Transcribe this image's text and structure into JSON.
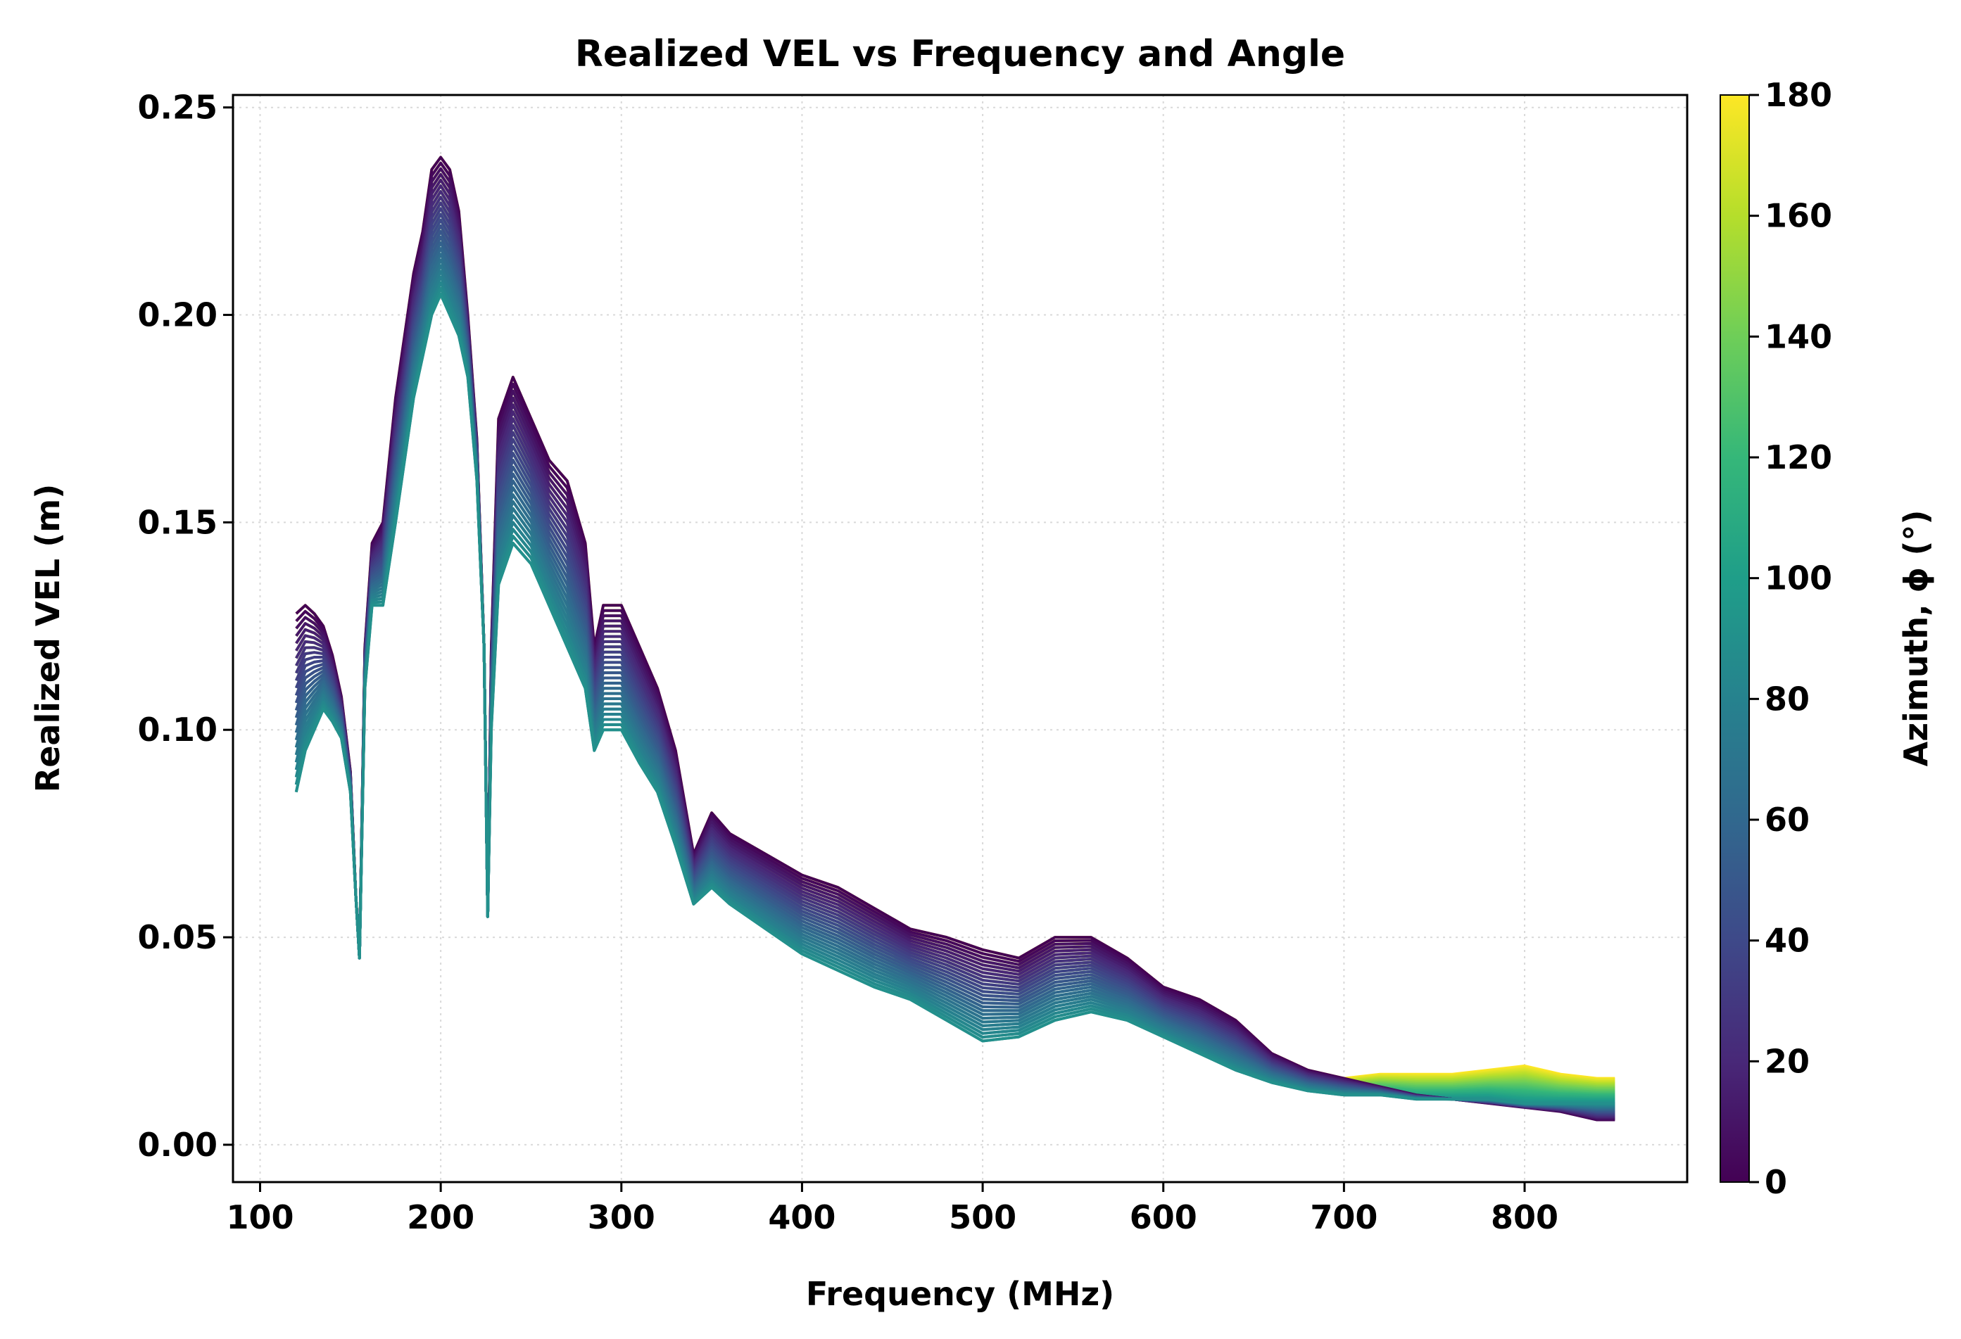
{
  "chart_data": {
    "type": "line",
    "title": "Realized VEL vs Frequency and Angle",
    "xlabel": "Frequency (MHz)",
    "ylabel": "Realized VEL (m)",
    "xlim": [
      85,
      890
    ],
    "ylim": [
      -0.009,
      0.253
    ],
    "xticks": [
      100,
      200,
      300,
      400,
      500,
      600,
      700,
      800
    ],
    "xtick_labels": [
      "100",
      "200",
      "300",
      "400",
      "500",
      "600",
      "700",
      "800"
    ],
    "yticks": [
      0.0,
      0.05,
      0.1,
      0.15,
      0.2,
      0.25
    ],
    "ytick_labels": [
      "0.00",
      "0.05",
      "0.10",
      "0.15",
      "0.20",
      "0.25"
    ],
    "grid": true,
    "colorbar": {
      "label": "Azimuth, ϕ (°)",
      "range": [
        0,
        180
      ],
      "ticks": [
        0,
        20,
        40,
        60,
        80,
        100,
        120,
        140,
        160,
        180
      ],
      "tick_labels": [
        "0",
        "20",
        "40",
        "60",
        "80",
        "100",
        "120",
        "140",
        "160",
        "180"
      ],
      "colormap_stops": [
        "#440154",
        "#482878",
        "#3e4989",
        "#31688e",
        "#26828e",
        "#1f9e89",
        "#35b779",
        "#6ece58",
        "#b5de2b",
        "#fde725"
      ]
    },
    "series": [
      {
        "name": "Azimuth 0°",
        "azimuth": 0,
        "x": [
          120,
          125,
          130,
          135,
          140,
          145,
          150,
          153,
          155,
          158,
          162,
          168,
          175,
          180,
          185,
          190,
          195,
          200,
          205,
          210,
          215,
          220,
          224,
          226,
          228,
          232,
          240,
          250,
          260,
          270,
          280,
          285,
          290,
          300,
          310,
          320,
          330,
          340,
          350,
          360,
          380,
          400,
          420,
          440,
          460,
          480,
          500,
          520,
          540,
          560,
          580,
          600,
          620,
          640,
          660,
          680,
          700,
          720,
          740,
          760,
          780,
          800,
          820,
          840,
          850
        ],
        "y": [
          0.128,
          0.13,
          0.128,
          0.125,
          0.118,
          0.108,
          0.09,
          0.06,
          0.045,
          0.12,
          0.145,
          0.15,
          0.18,
          0.195,
          0.21,
          0.22,
          0.235,
          0.238,
          0.235,
          0.225,
          0.2,
          0.17,
          0.12,
          0.055,
          0.12,
          0.175,
          0.185,
          0.175,
          0.165,
          0.16,
          0.145,
          0.12,
          0.13,
          0.13,
          0.12,
          0.11,
          0.095,
          0.07,
          0.08,
          0.075,
          0.07,
          0.065,
          0.062,
          0.057,
          0.052,
          0.05,
          0.047,
          0.045,
          0.05,
          0.05,
          0.045,
          0.038,
          0.035,
          0.03,
          0.022,
          0.018,
          0.016,
          0.014,
          0.012,
          0.011,
          0.01,
          0.009,
          0.008,
          0.006,
          0.006
        ]
      },
      {
        "name": "Azimuth 90°",
        "azimuth": 90,
        "x": [
          120,
          125,
          130,
          135,
          140,
          145,
          150,
          153,
          155,
          158,
          162,
          168,
          175,
          180,
          185,
          190,
          195,
          200,
          205,
          210,
          215,
          220,
          224,
          226,
          228,
          232,
          240,
          250,
          260,
          270,
          280,
          285,
          290,
          300,
          310,
          320,
          330,
          340,
          350,
          360,
          380,
          400,
          420,
          440,
          460,
          480,
          500,
          520,
          540,
          560,
          580,
          600,
          620,
          640,
          660,
          680,
          700,
          720,
          740,
          760,
          780,
          800,
          820,
          840,
          850
        ],
        "y": [
          0.085,
          0.095,
          0.1,
          0.105,
          0.102,
          0.098,
          0.085,
          0.06,
          0.045,
          0.11,
          0.13,
          0.13,
          0.15,
          0.165,
          0.18,
          0.19,
          0.2,
          0.205,
          0.2,
          0.195,
          0.185,
          0.16,
          0.12,
          0.055,
          0.1,
          0.135,
          0.145,
          0.14,
          0.13,
          0.12,
          0.11,
          0.095,
          0.1,
          0.1,
          0.092,
          0.085,
          0.072,
          0.058,
          0.062,
          0.058,
          0.052,
          0.046,
          0.042,
          0.038,
          0.035,
          0.03,
          0.025,
          0.026,
          0.03,
          0.032,
          0.03,
          0.026,
          0.022,
          0.018,
          0.015,
          0.013,
          0.012,
          0.012,
          0.011,
          0.011,
          0.011,
          0.01,
          0.01,
          0.01,
          0.01
        ]
      },
      {
        "name": "Azimuth 180°",
        "azimuth": 180,
        "x": [
          120,
          125,
          130,
          135,
          140,
          145,
          150,
          153,
          155,
          158,
          162,
          168,
          175,
          180,
          185,
          190,
          195,
          200,
          205,
          210,
          215,
          220,
          224,
          226,
          228,
          232,
          240,
          250,
          260,
          270,
          280,
          285,
          290,
          300,
          310,
          320,
          330,
          340,
          350,
          360,
          380,
          400,
          420,
          440,
          460,
          480,
          500,
          520,
          540,
          560,
          580,
          600,
          620,
          640,
          660,
          680,
          700,
          720,
          740,
          760,
          780,
          800,
          820,
          840,
          850
        ],
        "y": [
          0.128,
          0.13,
          0.128,
          0.125,
          0.118,
          0.108,
          0.09,
          0.06,
          0.045,
          0.12,
          0.145,
          0.15,
          0.18,
          0.195,
          0.21,
          0.22,
          0.235,
          0.238,
          0.235,
          0.225,
          0.2,
          0.17,
          0.12,
          0.055,
          0.12,
          0.175,
          0.185,
          0.175,
          0.165,
          0.16,
          0.145,
          0.12,
          0.13,
          0.13,
          0.12,
          0.11,
          0.095,
          0.07,
          0.08,
          0.075,
          0.07,
          0.065,
          0.062,
          0.057,
          0.052,
          0.05,
          0.047,
          0.045,
          0.05,
          0.05,
          0.045,
          0.038,
          0.035,
          0.03,
          0.022,
          0.018,
          0.016,
          0.017,
          0.017,
          0.017,
          0.018,
          0.019,
          0.017,
          0.016,
          0.016
        ]
      }
    ]
  }
}
